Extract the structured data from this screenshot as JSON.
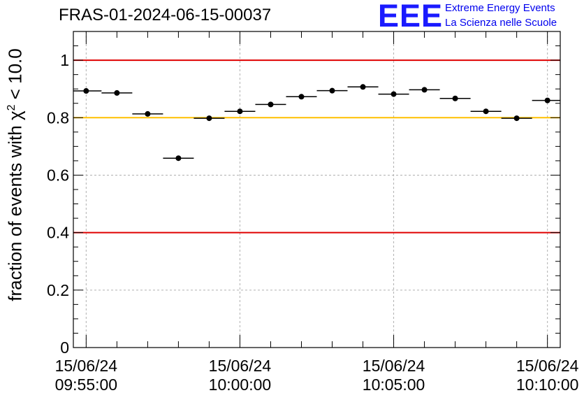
{
  "title": "FRAS-01-2024-06-15-00037",
  "logo": {
    "mark": "EEE",
    "line1": "Extreme Energy Events",
    "line2": "La Scienza nelle Scuole"
  },
  "colors": {
    "logo": "#1a1aff",
    "logo_text": "#0000ee",
    "threshold_red": "#e00000",
    "threshold_yellow": "#ffc000",
    "points": "#000000",
    "grid": "#b0b0b0"
  },
  "chart_data": {
    "type": "scatter",
    "title": "FRAS-01-2024-06-15-00037",
    "ylabel": {
      "pre": "fraction of events with ",
      "symbol": "χ",
      "exp": "2",
      "post": " < 10.0"
    },
    "xlabel": "",
    "ylim": [
      0,
      1.1
    ],
    "xlim": [
      "2024-06-15 09:54:35",
      "2024-06-15 10:10:25"
    ],
    "grid": true,
    "yticks": [
      {
        "value": 0,
        "label": "0"
      },
      {
        "value": 0.2,
        "label": "0.2"
      },
      {
        "value": 0.4,
        "label": "0.4"
      },
      {
        "value": 0.6,
        "label": "0.6"
      },
      {
        "value": 0.8,
        "label": "0.8"
      },
      {
        "value": 1.0,
        "label": "1"
      }
    ],
    "xticks": [
      {
        "time": "2024-06-15 09:55:00",
        "date": "15/06/24",
        "clock": "09:55:00"
      },
      {
        "time": "2024-06-15 10:00:00",
        "date": "15/06/24",
        "clock": "10:00:00"
      },
      {
        "time": "2024-06-15 10:05:00",
        "date": "15/06/24",
        "clock": "10:05:00"
      },
      {
        "time": "2024-06-15 10:10:00",
        "date": "15/06/24",
        "clock": "10:10:00"
      }
    ],
    "reference_lines": [
      {
        "value": 1.0,
        "color": "#e00000"
      },
      {
        "value": 0.8,
        "color": "#ffc000"
      },
      {
        "value": 0.4,
        "color": "#e00000"
      }
    ],
    "bin_width_minutes": 1,
    "series": [
      {
        "points": [
          {
            "x": "2024-06-15 09:55:00",
            "y": 0.893
          },
          {
            "x": "2024-06-15 09:56:00",
            "y": 0.886
          },
          {
            "x": "2024-06-15 09:57:00",
            "y": 0.813
          },
          {
            "x": "2024-06-15 09:58:00",
            "y": 0.659
          },
          {
            "x": "2024-06-15 09:59:00",
            "y": 0.798
          },
          {
            "x": "2024-06-15 10:00:00",
            "y": 0.822
          },
          {
            "x": "2024-06-15 10:01:00",
            "y": 0.846
          },
          {
            "x": "2024-06-15 10:02:00",
            "y": 0.873
          },
          {
            "x": "2024-06-15 10:03:00",
            "y": 0.894
          },
          {
            "x": "2024-06-15 10:04:00",
            "y": 0.907
          },
          {
            "x": "2024-06-15 10:05:00",
            "y": 0.882
          },
          {
            "x": "2024-06-15 10:06:00",
            "y": 0.897
          },
          {
            "x": "2024-06-15 10:07:00",
            "y": 0.867
          },
          {
            "x": "2024-06-15 10:08:00",
            "y": 0.822
          },
          {
            "x": "2024-06-15 10:09:00",
            "y": 0.798
          },
          {
            "x": "2024-06-15 10:10:00",
            "y": 0.86
          }
        ]
      }
    ]
  }
}
